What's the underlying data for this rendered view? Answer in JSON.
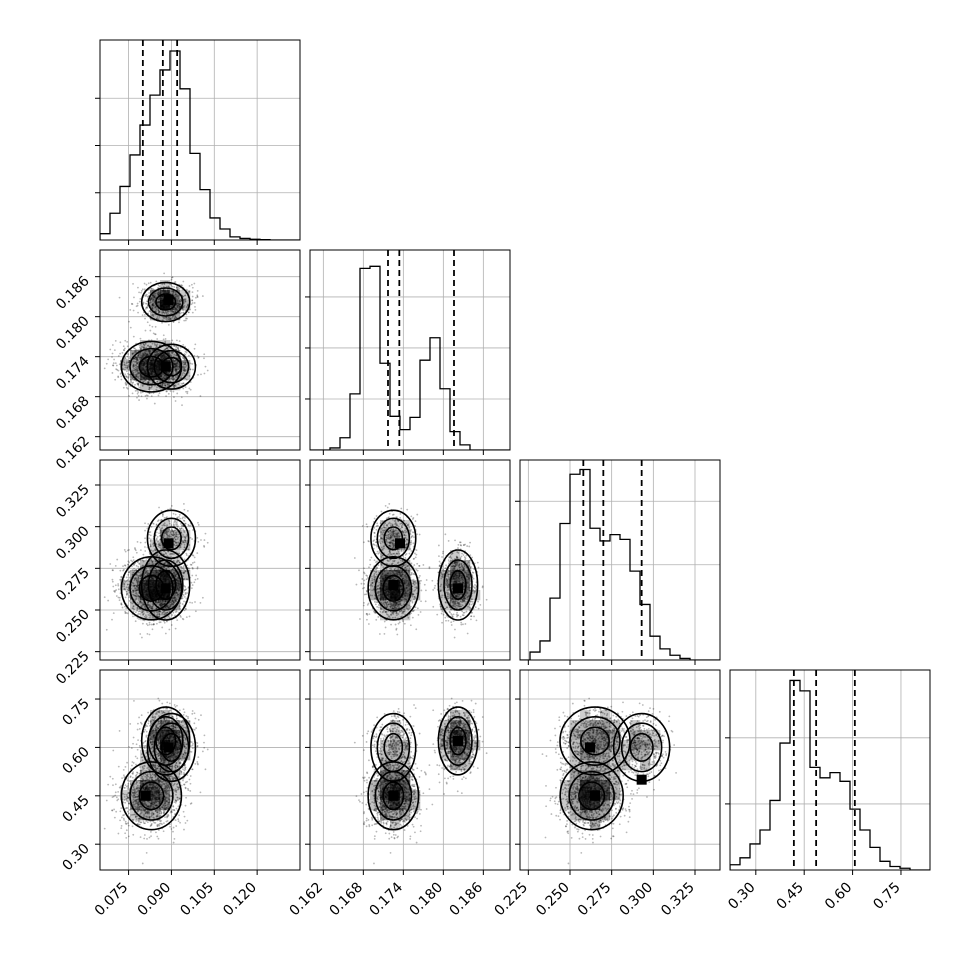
{
  "chart_data": {
    "type": "corner",
    "n_params": 4,
    "params": [
      {
        "range": [
          0.065,
          0.135
        ],
        "ticks": [
          0.075,
          0.09,
          0.105,
          0.12
        ],
        "tick_labels": [
          "0.075",
          "0.090",
          "0.105",
          "0.120"
        ],
        "quantiles": [
          0.08,
          0.087,
          0.092
        ],
        "hist": {
          "edges_start": 0.065,
          "bin_width": 0.0035,
          "counts": [
            0.4,
            1.7,
            3.4,
            5.4,
            7.3,
            9.2,
            10.8,
            12.0,
            9.6,
            5.5,
            3.2,
            1.4,
            0.7,
            0.2,
            0.1,
            0.05,
            0.02,
            0.0,
            0.0,
            0.0
          ]
        },
        "hist_ylim": [
          0,
          12.7
        ],
        "hist_yticks": [
          3,
          6,
          9
        ]
      },
      {
        "range": [
          0.16,
          0.19
        ],
        "ticks": [
          0.162,
          0.168,
          0.174,
          0.18,
          0.186
        ],
        "tick_labels": [
          "0.162",
          "0.168",
          "0.174",
          "0.180",
          "0.186"
        ],
        "quantiles": [
          0.1717,
          0.1734,
          0.1816
        ],
        "hist": {
          "edges_start": 0.16,
          "bin_width": 0.0015,
          "counts": [
            0.0,
            0.0,
            0.2,
            1.2,
            5.5,
            17.8,
            18.0,
            8.5,
            3.3,
            2.0,
            3.2,
            8.8,
            11.0,
            6.0,
            1.8,
            0.5,
            0.0,
            0.0,
            0.0,
            0.0
          ]
        },
        "hist_ylim": [
          0,
          19.6
        ],
        "hist_yticks": [
          5,
          10,
          15
        ]
      },
      {
        "range": [
          0.22,
          0.34
        ],
        "ticks": [
          0.225,
          0.25,
          0.275,
          0.3,
          0.325
        ],
        "tick_labels": [
          "0.225",
          "0.250",
          "0.275",
          "0.300",
          "0.325"
        ],
        "quantiles": [
          0.258,
          0.27,
          0.293
        ],
        "hist": {
          "edges_start": 0.22,
          "bin_width": 0.006,
          "counts": [
            0.0,
            0.5,
            1.2,
            3.9,
            8.6,
            11.7,
            12.0,
            8.3,
            7.5,
            7.9,
            7.6,
            5.6,
            3.5,
            1.5,
            0.7,
            0.3,
            0.1,
            0.0,
            0.0,
            0.0
          ]
        },
        "hist_ylim": [
          0,
          12.6
        ],
        "hist_yticks": [
          6,
          10
        ]
      },
      {
        "range": [
          0.22,
          0.84
        ],
        "ticks": [
          0.3,
          0.45,
          0.6,
          0.75
        ],
        "tick_labels": [
          "0.30",
          "0.45",
          "0.60",
          "0.75"
        ],
        "quantiles": [
          0.418,
          0.487,
          0.607
        ],
        "hist": {
          "edges_start": 0.22,
          "bin_width": 0.031,
          "counts": [
            0.3,
            0.7,
            1.5,
            2.3,
            4.0,
            7.3,
            10.9,
            10.3,
            5.9,
            5.3,
            5.6,
            5.1,
            3.5,
            2.3,
            1.3,
            0.5,
            0.2,
            0.1,
            0.0,
            0.0
          ]
        },
        "hist_ylim": [
          0,
          11.5
        ],
        "hist_yticks": [
          3.8,
          7.6
        ]
      }
    ],
    "modes": [
      {
        "center": [
          0.083,
          0.1725,
          0.263,
          0.45
        ],
        "sd": [
          0.005,
          0.0018,
          0.009,
          0.05
        ],
        "weight": 0.5
      },
      {
        "center": [
          0.09,
          0.1725,
          0.293,
          0.6
        ],
        "sd": [
          0.004,
          0.0016,
          0.008,
          0.05
        ],
        "weight": 0.17
      },
      {
        "center": [
          0.088,
          0.1822,
          0.265,
          0.62
        ],
        "sd": [
          0.004,
          0.0014,
          0.01,
          0.05
        ],
        "weight": 0.33
      }
    ],
    "n_samples": 2600,
    "density_peaks": [
      {
        "panel": "1-0",
        "points": [
          [
            0.088,
            0.1725
          ],
          [
            0.089,
            0.1825
          ]
        ]
      },
      {
        "panel": "2-0",
        "points": [
          [
            0.088,
            0.263
          ],
          [
            0.089,
            0.29
          ]
        ]
      },
      {
        "panel": "3-0",
        "points": [
          [
            0.081,
            0.45
          ],
          [
            0.089,
            0.6
          ]
        ]
      },
      {
        "panel": "2-1",
        "points": [
          [
            0.1725,
            0.265
          ],
          [
            0.1735,
            0.29
          ],
          [
            0.1822,
            0.263
          ]
        ]
      },
      {
        "panel": "3-1",
        "points": [
          [
            0.1725,
            0.45
          ],
          [
            0.1822,
            0.62
          ]
        ]
      },
      {
        "panel": "3-2",
        "points": [
          [
            0.265,
            0.45
          ],
          [
            0.262,
            0.6
          ],
          [
            0.293,
            0.5
          ]
        ]
      }
    ],
    "grid": true
  }
}
